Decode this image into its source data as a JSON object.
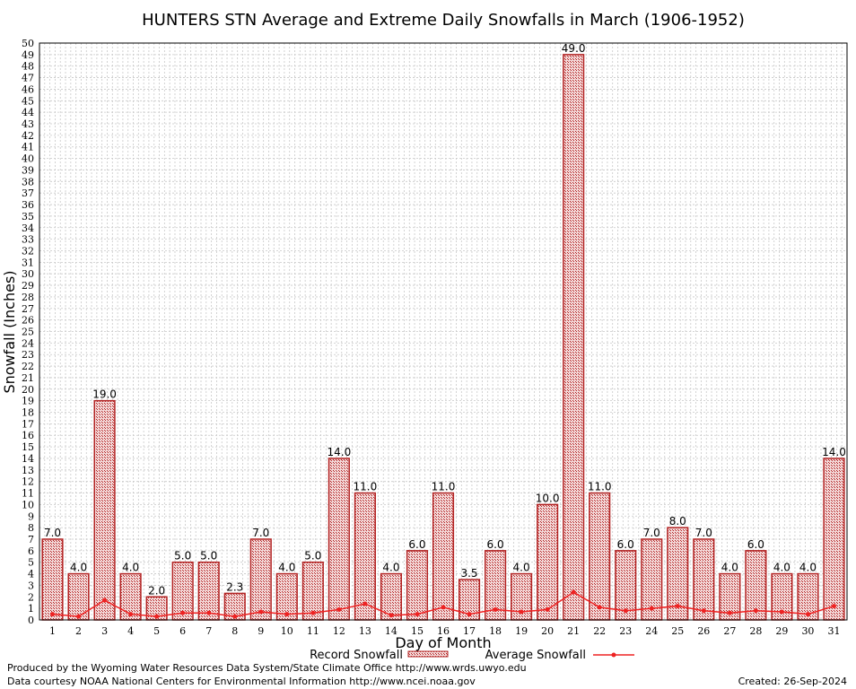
{
  "chart_data": {
    "type": "bar",
    "title": "HUNTERS STN Average and Extreme Daily Snowfalls in March (1906-1952)",
    "xlabel": "Day of Month",
    "ylabel": "Snowfall (Inches)",
    "ylim": [
      0,
      50
    ],
    "categories": [
      "1",
      "2",
      "3",
      "4",
      "5",
      "6",
      "7",
      "8",
      "9",
      "10",
      "11",
      "12",
      "13",
      "14",
      "15",
      "16",
      "17",
      "18",
      "19",
      "20",
      "21",
      "22",
      "23",
      "24",
      "25",
      "26",
      "27",
      "28",
      "29",
      "30",
      "31"
    ],
    "series": [
      {
        "name": "Record Snowfall",
        "kind": "bar",
        "color": "#b22222",
        "values": [
          7.0,
          4.0,
          19.0,
          4.0,
          2.0,
          5.0,
          5.0,
          2.3,
          7.0,
          4.0,
          5.0,
          14.0,
          11.0,
          4.0,
          6.0,
          11.0,
          3.5,
          6.0,
          4.0,
          10.0,
          49.0,
          11.0,
          6.0,
          7.0,
          8.0,
          7.0,
          4.0,
          6.0,
          4.0,
          4.0,
          14.0
        ],
        "labels": [
          "7.0",
          "4.0",
          "19.0",
          "4.0",
          "2.0",
          "5.0",
          "5.0",
          "2.3",
          "7.0",
          "4.0",
          "5.0",
          "14.0",
          "11.0",
          "4.0",
          "6.0",
          "11.0",
          "3.5",
          "6.0",
          "4.0",
          "10.0",
          "49.0",
          "11.0",
          "6.0",
          "7.0",
          "8.0",
          "7.0",
          "4.0",
          "6.0",
          "4.0",
          "4.0",
          "14.0"
        ]
      },
      {
        "name": "Average Snowfall",
        "kind": "line",
        "color": "#ee2222",
        "values": [
          0.5,
          0.3,
          1.7,
          0.5,
          0.3,
          0.6,
          0.6,
          0.3,
          0.7,
          0.5,
          0.6,
          0.9,
          1.4,
          0.4,
          0.5,
          1.1,
          0.5,
          0.9,
          0.7,
          0.9,
          2.4,
          1.1,
          0.8,
          1.0,
          1.2,
          0.8,
          0.6,
          0.8,
          0.7,
          0.5,
          1.2
        ]
      }
    ],
    "grid": true,
    "legend": "bottom-center"
  },
  "footer": {
    "produced_by": "Produced by the Wyoming Water Resources Data System/State Climate Office http://www.wrds.uwyo.edu",
    "data_courtesy": "Data courtesy NOAA National Centers for Environmental Information http://www.ncei.noaa.gov",
    "created": "Created:  26-Sep-2024"
  }
}
